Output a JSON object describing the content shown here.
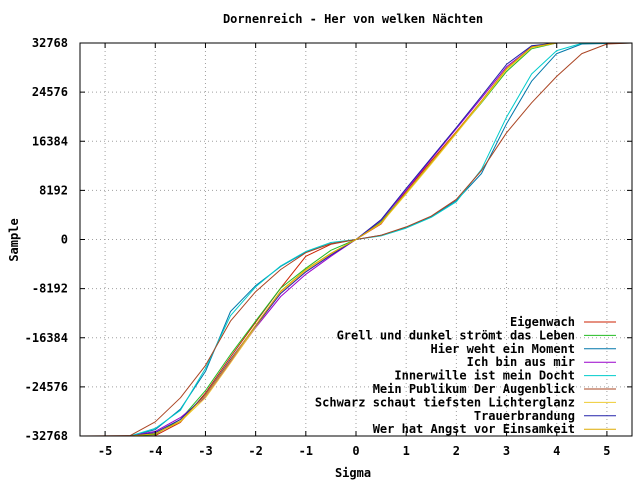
{
  "chart_data": {
    "type": "line",
    "title": "Dornenreich - Her von welken Nächten",
    "xlabel": "Sigma",
    "ylabel": "Sample",
    "xlim": [
      -5.5,
      5.5
    ],
    "ylim": [
      -32768,
      32768
    ],
    "x_ticks": [
      -5,
      -4,
      -3,
      -2,
      -1,
      0,
      1,
      2,
      3,
      4,
      5
    ],
    "y_ticks": [
      -32768,
      -24576,
      -16384,
      -8192,
      0,
      8192,
      16384,
      24576,
      32768
    ],
    "grid": true,
    "legend_position": "bottom-right",
    "series": [
      {
        "name": "Eigenwach",
        "color": "#cc2200",
        "points": [
          [
            -5.5,
            -32768
          ],
          [
            -4.5,
            -32768
          ],
          [
            -4.0,
            -32700
          ],
          [
            -3.5,
            -30500
          ],
          [
            -3.0,
            -25600
          ],
          [
            -2.5,
            -19600
          ],
          [
            -2.0,
            -13800
          ],
          [
            -1.5,
            -8100
          ],
          [
            -1.0,
            -2800
          ],
          [
            -0.5,
            -800
          ],
          [
            0,
            0
          ],
          [
            0.5,
            2600
          ],
          [
            1.0,
            8100
          ],
          [
            1.5,
            13100
          ],
          [
            2.0,
            18000
          ],
          [
            2.5,
            23100
          ],
          [
            3.0,
            28500
          ],
          [
            3.5,
            32200
          ],
          [
            4.0,
            32768
          ],
          [
            5.5,
            32768
          ]
        ]
      },
      {
        "name": "Grell und dunkel strömt das Leben",
        "color": "#22bb22",
        "points": [
          [
            -5.5,
            -32768
          ],
          [
            -4.5,
            -32768
          ],
          [
            -4.0,
            -32500
          ],
          [
            -3.5,
            -30000
          ],
          [
            -3.0,
            -25200
          ],
          [
            -2.5,
            -19200
          ],
          [
            -2.0,
            -13600
          ],
          [
            -1.5,
            -8100
          ],
          [
            -1.0,
            -4800
          ],
          [
            -0.5,
            -1800
          ],
          [
            0,
            0
          ],
          [
            0.5,
            3000
          ],
          [
            1.0,
            7800
          ],
          [
            1.5,
            12800
          ],
          [
            2.0,
            17800
          ],
          [
            2.5,
            22800
          ],
          [
            3.0,
            28000
          ],
          [
            3.5,
            31800
          ],
          [
            4.0,
            32768
          ],
          [
            5.5,
            32768
          ]
        ]
      },
      {
        "name": "Hier weht ein Moment",
        "color": "#0077aa",
        "points": [
          [
            -5.5,
            -32768
          ],
          [
            -4.5,
            -32768
          ],
          [
            -4.0,
            -31700
          ],
          [
            -3.5,
            -28300
          ],
          [
            -3.0,
            -22000
          ],
          [
            -2.5,
            -12000
          ],
          [
            -2.0,
            -7700
          ],
          [
            -1.5,
            -4500
          ],
          [
            -1.0,
            -2100
          ],
          [
            -0.5,
            -700
          ],
          [
            0,
            0
          ],
          [
            0.5,
            700
          ],
          [
            1.0,
            2000
          ],
          [
            1.5,
            3800
          ],
          [
            2.0,
            6500
          ],
          [
            2.5,
            11000
          ],
          [
            3.0,
            19300
          ],
          [
            3.5,
            26400
          ],
          [
            4.0,
            31000
          ],
          [
            4.5,
            32600
          ],
          [
            5.5,
            32768
          ]
        ]
      },
      {
        "name": "Ich bin aus mir",
        "color": "#9900cc",
        "points": [
          [
            -5.5,
            -32768
          ],
          [
            -4.5,
            -32768
          ],
          [
            -4.0,
            -32000
          ],
          [
            -3.5,
            -29700
          ],
          [
            -3.0,
            -26300
          ],
          [
            -2.5,
            -20400
          ],
          [
            -2.0,
            -14700
          ],
          [
            -1.5,
            -9500
          ],
          [
            -1.0,
            -5800
          ],
          [
            -0.5,
            -2800
          ],
          [
            0,
            0
          ],
          [
            0.5,
            3200
          ],
          [
            1.0,
            8200
          ],
          [
            1.5,
            13400
          ],
          [
            2.0,
            18500
          ],
          [
            2.5,
            23600
          ],
          [
            3.0,
            28800
          ],
          [
            3.5,
            32100
          ],
          [
            4.0,
            32768
          ],
          [
            5.5,
            32768
          ]
        ]
      },
      {
        "name": "Innerwille ist mein Docht",
        "color": "#00cccc",
        "points": [
          [
            -5.5,
            -32768
          ],
          [
            -4.5,
            -32768
          ],
          [
            -4.0,
            -31500
          ],
          [
            -3.5,
            -28500
          ],
          [
            -3.0,
            -21500
          ],
          [
            -2.5,
            -12700
          ],
          [
            -2.0,
            -7900
          ],
          [
            -1.5,
            -4400
          ],
          [
            -1.0,
            -2000
          ],
          [
            -0.5,
            -500
          ],
          [
            0,
            0
          ],
          [
            0.5,
            600
          ],
          [
            1.0,
            1900
          ],
          [
            1.5,
            3700
          ],
          [
            2.0,
            6300
          ],
          [
            2.5,
            11700
          ],
          [
            3.0,
            20400
          ],
          [
            3.5,
            27600
          ],
          [
            4.0,
            31500
          ],
          [
            4.5,
            32700
          ],
          [
            5.5,
            32768
          ]
        ]
      },
      {
        "name": "Mein Publikum  Der Augenblick",
        "color": "#aa4422",
        "points": [
          [
            -5.5,
            -32768
          ],
          [
            -4.5,
            -32700
          ],
          [
            -4.0,
            -30400
          ],
          [
            -3.5,
            -26400
          ],
          [
            -3.0,
            -21000
          ],
          [
            -2.5,
            -13600
          ],
          [
            -2.0,
            -8700
          ],
          [
            -1.5,
            -5000
          ],
          [
            -1.0,
            -2200
          ],
          [
            -0.5,
            -700
          ],
          [
            0,
            0
          ],
          [
            0.5,
            700
          ],
          [
            1.0,
            2100
          ],
          [
            1.5,
            3900
          ],
          [
            2.0,
            6700
          ],
          [
            2.5,
            11500
          ],
          [
            3.0,
            17800
          ],
          [
            3.5,
            22800
          ],
          [
            4.0,
            27200
          ],
          [
            4.5,
            31000
          ],
          [
            5.0,
            32600
          ],
          [
            5.5,
            32768
          ]
        ]
      },
      {
        "name": "Schwarz schaut tiefsten Lichterglanz",
        "color": "#eecc33",
        "points": [
          [
            -5.5,
            -32768
          ],
          [
            -4.5,
            -32768
          ],
          [
            -4.0,
            -32300
          ],
          [
            -3.5,
            -30400
          ],
          [
            -3.0,
            -26400
          ],
          [
            -2.5,
            -20600
          ],
          [
            -2.0,
            -14600
          ],
          [
            -1.5,
            -8800
          ],
          [
            -1.0,
            -5200
          ],
          [
            -0.5,
            -2400
          ],
          [
            0,
            0
          ],
          [
            0.5,
            2700
          ],
          [
            1.0,
            7600
          ],
          [
            1.5,
            12600
          ],
          [
            2.0,
            17700
          ],
          [
            2.5,
            22900
          ],
          [
            3.0,
            28300
          ],
          [
            3.5,
            32000
          ],
          [
            4.0,
            32768
          ],
          [
            5.5,
            32768
          ]
        ]
      },
      {
        "name": "Trauerbrandung",
        "color": "#2222aa",
        "points": [
          [
            -5.5,
            -32768
          ],
          [
            -4.5,
            -32768
          ],
          [
            -4.0,
            -32200
          ],
          [
            -3.5,
            -30000
          ],
          [
            -3.0,
            -25900
          ],
          [
            -2.5,
            -20000
          ],
          [
            -2.0,
            -14400
          ],
          [
            -1.5,
            -9000
          ],
          [
            -1.0,
            -5400
          ],
          [
            -0.5,
            -2600
          ],
          [
            0,
            0
          ],
          [
            0.5,
            3300
          ],
          [
            1.0,
            8500
          ],
          [
            1.5,
            13600
          ],
          [
            2.0,
            18700
          ],
          [
            2.5,
            23900
          ],
          [
            3.0,
            29200
          ],
          [
            3.5,
            32300
          ],
          [
            4.0,
            32768
          ],
          [
            5.5,
            32768
          ]
        ]
      },
      {
        "name": "Wer hat Angst vor Einsamkeit",
        "color": "#ddaa00",
        "points": [
          [
            -5.5,
            -32768
          ],
          [
            -4.5,
            -32768
          ],
          [
            -4.0,
            -32400
          ],
          [
            -3.5,
            -30300
          ],
          [
            -3.0,
            -26000
          ],
          [
            -2.5,
            -20200
          ],
          [
            -2.0,
            -14300
          ],
          [
            -1.5,
            -8600
          ],
          [
            -1.0,
            -5000
          ],
          [
            -0.5,
            -2300
          ],
          [
            0,
            0
          ],
          [
            0.5,
            2800
          ],
          [
            1.0,
            7800
          ],
          [
            1.5,
            12800
          ],
          [
            2.0,
            17900
          ],
          [
            2.5,
            23100
          ],
          [
            3.0,
            28500
          ],
          [
            3.5,
            32100
          ],
          [
            4.0,
            32768
          ],
          [
            5.5,
            32768
          ]
        ]
      }
    ]
  }
}
